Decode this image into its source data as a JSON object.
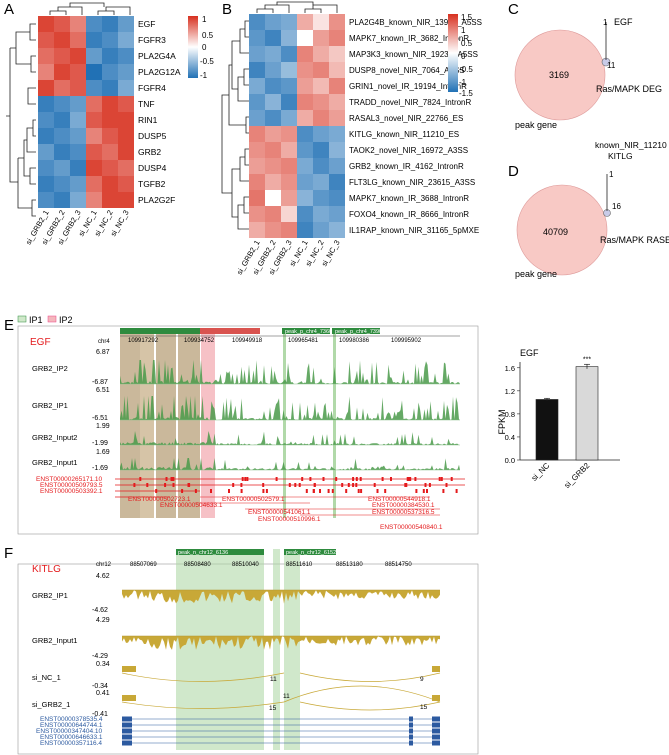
{
  "panel_letters": [
    "A",
    "B",
    "C",
    "D",
    "E",
    "F"
  ],
  "heatmap_a": {
    "genes": [
      "EGF",
      "FGFR3",
      "PLA2G4A",
      "PLA2G12A",
      "FGFR4",
      "TNF",
      "RIN1",
      "DUSP5",
      "GRB2",
      "DUSP4",
      "TGFB2",
      "PLA2G2F"
    ],
    "samples": [
      "si_GRB2_1",
      "si_GRB2_2",
      "si_GRB2_3",
      "si_NC_1",
      "si_NC_2",
      "si_NC_3"
    ],
    "legend_ticks": [
      "1",
      "0.5",
      "0",
      "-0.5",
      "-1"
    ],
    "values": [
      [
        0.9,
        0.8,
        0.6,
        -0.8,
        -0.9,
        -0.7
      ],
      [
        0.8,
        0.9,
        0.7,
        -0.9,
        -0.8,
        -0.6
      ],
      [
        0.7,
        0.8,
        0.9,
        -0.7,
        -0.9,
        -0.8
      ],
      [
        0.6,
        0.9,
        0.8,
        -1.0,
        -0.8,
        -0.7
      ],
      [
        0.9,
        0.7,
        0.8,
        -0.8,
        -0.9,
        -0.6
      ],
      [
        -0.9,
        -0.8,
        -0.7,
        0.7,
        0.9,
        0.8
      ],
      [
        -0.8,
        -0.9,
        -0.6,
        0.8,
        0.9,
        0.9
      ],
      [
        -0.9,
        -0.8,
        -0.7,
        0.6,
        0.8,
        0.9
      ],
      [
        -0.7,
        -0.9,
        -0.8,
        0.8,
        0.7,
        0.9
      ],
      [
        -0.8,
        -0.7,
        -0.9,
        0.9,
        0.8,
        0.7
      ],
      [
        -0.9,
        -0.8,
        -0.7,
        0.7,
        0.9,
        0.8
      ],
      [
        -0.8,
        -0.9,
        -0.6,
        0.6,
        0.9,
        0.9
      ]
    ]
  },
  "heatmap_b": {
    "events": [
      "PLA2G4B_known_NIR_13973_A5SS",
      "MAPK7_known_IR_3682_IntronR",
      "MAP3K3_known_NIR_19238_A5SS",
      "DUSP8_novel_NIR_7064_A5SS",
      "GRIN1_novel_IR_19194_IntronR",
      "TRADD_novel_NIR_7824_IntronR",
      "RASAL3_novel_NIR_22766_ES",
      "KITLG_known_NIR_11210_ES",
      "TAOK2_novel_NIR_16972_A3SS",
      "GRB2_known_IR_4162_IntronR",
      "FLT3LG_known_NIR_23615_A3SS",
      "MAPK7_known_IR_3688_IntronR",
      "FOXO4_known_IR_8666_IntronR",
      "IL1RAP_known_NIR_31165_5pMXE"
    ],
    "samples": [
      "si_GRB2_1",
      "si_GRB2_2",
      "si_GRB2_3",
      "si_NC_1",
      "si_NC_2",
      "si_NC_3"
    ],
    "legend_ticks": [
      "1.5",
      "1",
      "0.5",
      "0",
      "-0.5",
      "-1",
      "-1.5"
    ],
    "values": [
      [
        -1.2,
        -1.0,
        -0.9,
        0.6,
        0.2,
        0.8
      ],
      [
        -1.1,
        -1.3,
        -0.8,
        0.0,
        0.7,
        0.9
      ],
      [
        -1.0,
        -0.9,
        -1.2,
        0.9,
        0.6,
        0.4
      ],
      [
        -1.3,
        -1.0,
        -0.7,
        0.8,
        0.9,
        0.5
      ],
      [
        -0.9,
        -1.2,
        -1.1,
        0.7,
        0.5,
        0.9
      ],
      [
        -1.1,
        -0.8,
        -1.3,
        0.9,
        0.8,
        0.6
      ],
      [
        -1.0,
        -1.2,
        -0.9,
        0.6,
        0.9,
        0.7
      ],
      [
        0.9,
        0.7,
        0.8,
        -1.2,
        -1.0,
        -0.9
      ],
      [
        0.8,
        0.9,
        0.6,
        -1.1,
        -1.3,
        -0.8
      ],
      [
        0.7,
        0.8,
        0.9,
        -0.9,
        -1.2,
        -1.0
      ],
      [
        0.9,
        0.6,
        0.8,
        -1.0,
        -0.9,
        -1.3
      ],
      [
        1.0,
        0.0,
        0.7,
        -0.8,
        -1.1,
        -1.2
      ],
      [
        0.8,
        0.9,
        0.3,
        -1.2,
        -0.9,
        -1.0
      ],
      [
        0.6,
        0.8,
        0.9,
        -1.3,
        -1.0,
        -0.8
      ]
    ]
  },
  "venn_c": {
    "left_count": "3169",
    "overlap_count": "11",
    "right_count": "1",
    "gene_label": "EGF",
    "left_set": "peak gene",
    "right_set": "Ras/MAPK DEG"
  },
  "venn_d": {
    "left_count": "40709",
    "overlap_count": "16",
    "right_count": "1",
    "gene_label_line1": "known_NIR_11210",
    "gene_label_line2": "KITLG",
    "left_set": "peak gene",
    "right_set": "Ras/MAPK RASE"
  },
  "panel_e": {
    "legend": [
      "IP1",
      "IP2"
    ],
    "gene": "EGF",
    "chrom": "chr4",
    "coords": [
      "109917292",
      "109934752",
      "109949918",
      "109965481",
      "109980386",
      "109995902"
    ],
    "peaks": [
      "peak_p_chr4_7360",
      "peak_p_chr4_7390"
    ],
    "tracks": [
      {
        "name": "GRB2_IP2",
        "max": "6.87",
        "min": "-6.87"
      },
      {
        "name": "GRB2_IP1",
        "max": "6.51",
        "min": "-6.51"
      },
      {
        "name": "GRB2_Input2",
        "max": "1.99",
        "min": "-1.99"
      },
      {
        "name": "GRB2_Input1",
        "max": "1.69",
        "min": "-1.69"
      }
    ],
    "transcripts_left": [
      "ENST00000265171.10",
      "ENST00000509793.5",
      "ENST00000503392.1"
    ],
    "transcripts_right": [
      "ENST00000502723.1",
      "ENST00000504633.1",
      "ENST00000502579.1",
      "ENST00000541061.1",
      "ENST00000510996.1",
      "ENST00000544918.1",
      "ENST00000384530.1",
      "ENST00000537316.5",
      "ENST00000540840.1"
    ]
  },
  "chart_data": {
    "type": "bar",
    "title": "EGF",
    "categories": [
      "si_NC",
      "si_GRB2"
    ],
    "values": [
      1.05,
      1.62
    ],
    "errors": [
      0.02,
      0.04
    ],
    "ylabel": "FPKM",
    "ylim": [
      0,
      1.7
    ],
    "yticks": [
      "0.0",
      "0.4",
      "0.8",
      "1.2",
      "1.6"
    ],
    "significance": "***"
  },
  "panel_f": {
    "gene": "KITLG",
    "chrom": "chr12",
    "coords": [
      "88507069",
      "88508480",
      "88510040",
      "88511610",
      "88513180",
      "88514750"
    ],
    "peaks": [
      "peak_n_chr12_6136",
      "peak_n_chr12_6152"
    ],
    "tracks": [
      {
        "name": "GRB2_IP1",
        "max": "4.62",
        "min": "-4.62"
      },
      {
        "name": "GRB2_Input1",
        "max": "4.29",
        "min": "-4.29"
      }
    ],
    "sashimi": [
      {
        "name": "si_NC_1",
        "max": "0.34",
        "min": "-0.34",
        "junctions": [
          "11",
          "9"
        ]
      },
      {
        "name": "si_GRB2_1",
        "max": "0.41",
        "min": "-0.41",
        "junctions": [
          "11",
          "15",
          "15"
        ]
      }
    ],
    "transcripts": [
      "ENST00000378535.4",
      "ENST00000644744.1",
      "ENST00000347404.10",
      "ENST00000646633.1",
      "ENST00000357116.4"
    ]
  },
  "colors": {
    "high": "#d7301f",
    "mid": "#ffffff",
    "low": "#2171b5",
    "ip_green": "#2e8b3e",
    "ip_pink": "#f4b6bc",
    "gene_red": "#e41a1c",
    "track_gold": "#c8a837",
    "transcript_blue": "#2c5aa0"
  }
}
